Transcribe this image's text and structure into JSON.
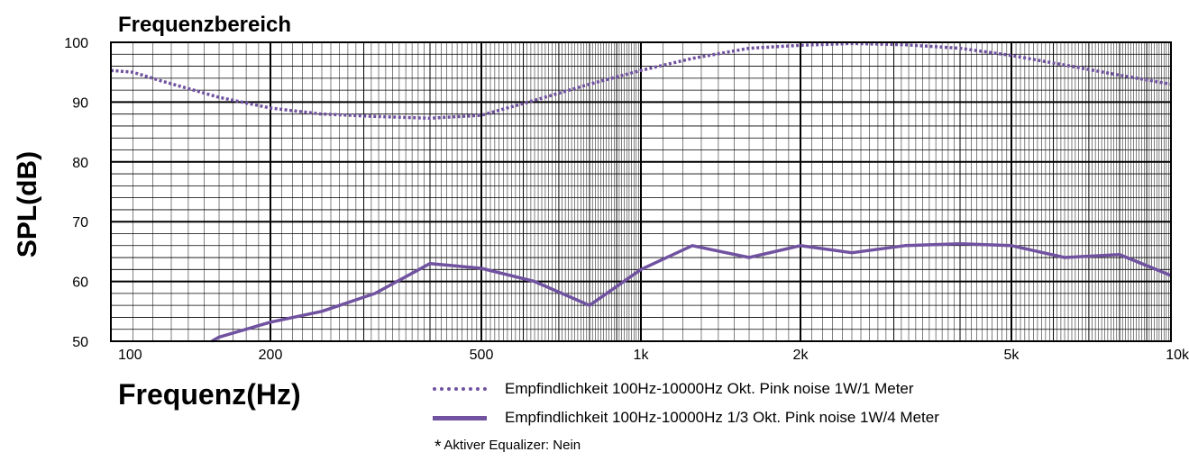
{
  "chart_data": {
    "type": "line",
    "title": "Frequenzbereich",
    "xlabel": "Frequenz(Hz)",
    "ylabel": "SPL(dB)",
    "x_scale": "log",
    "xlim": [
      100,
      10000
    ],
    "ylim": [
      50,
      100
    ],
    "grid": true,
    "x_ticks": [
      {
        "value": 100,
        "label": "100"
      },
      {
        "value": 200,
        "label": "200"
      },
      {
        "value": 500,
        "label": "500"
      },
      {
        "value": 1000,
        "label": "1k"
      },
      {
        "value": 2000,
        "label": "2k"
      },
      {
        "value": 5000,
        "label": "5k"
      },
      {
        "value": 10000,
        "label": "10k"
      }
    ],
    "y_ticks": [
      50,
      60,
      70,
      80,
      90,
      100
    ],
    "legend_position": "bottom",
    "series": [
      {
        "name": "Empfindlichkeit 100Hz-10000Hz Okt. Pink noise 1W/1 Meter",
        "style": "dotted",
        "color": "#7052a0",
        "x": [
          100,
          110,
          125,
          160,
          200,
          250,
          315,
          400,
          500,
          630,
          800,
          1000,
          1250,
          1600,
          2000,
          2500,
          3150,
          4000,
          5000,
          6300,
          8000,
          10000
        ],
        "y": [
          95.3,
          95.0,
          93.5,
          90.8,
          89.0,
          88.0,
          87.6,
          87.3,
          87.8,
          90.3,
          93.0,
          95.3,
          97.3,
          99.0,
          99.5,
          99.8,
          99.6,
          99.0,
          97.8,
          96.2,
          94.5,
          93.0
        ]
      },
      {
        "name": "Empfindlichkeit 100Hz-10000Hz 1/3 Okt. Pink noise 1W/4 Meter",
        "style": "solid",
        "color": "#7052a0",
        "x": [
          155,
          160,
          200,
          250,
          315,
          400,
          500,
          630,
          800,
          1000,
          1250,
          1600,
          2000,
          2500,
          3150,
          4000,
          5000,
          6300,
          8000,
          10000
        ],
        "y": [
          50.0,
          50.7,
          53.2,
          55.0,
          58.0,
          63.0,
          62.2,
          60.0,
          56.0,
          62.0,
          66.0,
          64.0,
          66.0,
          64.8,
          66.0,
          66.3,
          66.0,
          64.0,
          64.5,
          61.0
        ]
      }
    ]
  },
  "footnote": {
    "star": "*",
    "text": "Aktiver Equalizer: Nein"
  }
}
